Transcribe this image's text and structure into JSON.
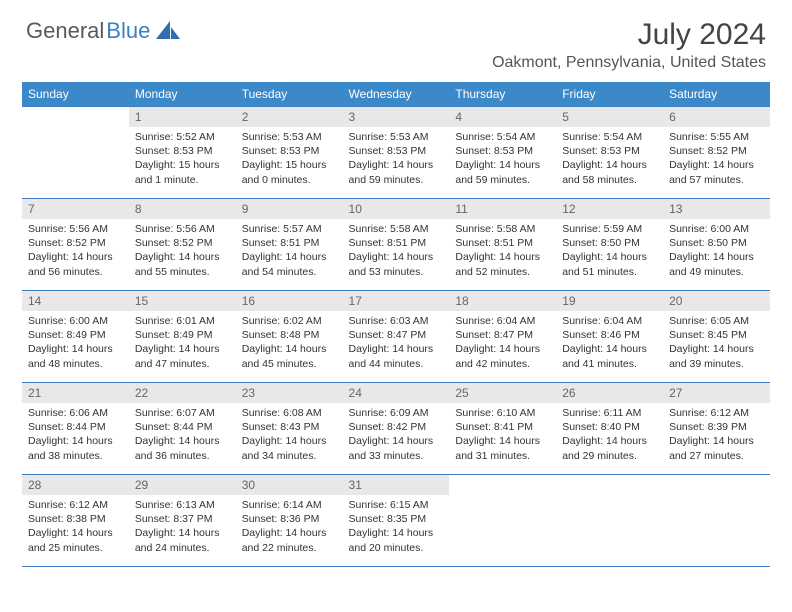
{
  "brand": {
    "part1": "General",
    "part2": "Blue"
  },
  "title": "July 2024",
  "location": "Oakmont, Pennsylvania, United States",
  "colors": {
    "header_bg": "#3b89c9",
    "rule": "#3b7fc4",
    "daynum_bg": "#e8e8e8",
    "text": "#333333",
    "logo_gray": "#555b60"
  },
  "day_headers": [
    "Sunday",
    "Monday",
    "Tuesday",
    "Wednesday",
    "Thursday",
    "Friday",
    "Saturday"
  ],
  "weeks": [
    [
      null,
      {
        "n": "1",
        "sr": "5:52 AM",
        "ss": "8:53 PM",
        "dl": "15 hours and 1 minute."
      },
      {
        "n": "2",
        "sr": "5:53 AM",
        "ss": "8:53 PM",
        "dl": "15 hours and 0 minutes."
      },
      {
        "n": "3",
        "sr": "5:53 AM",
        "ss": "8:53 PM",
        "dl": "14 hours and 59 minutes."
      },
      {
        "n": "4",
        "sr": "5:54 AM",
        "ss": "8:53 PM",
        "dl": "14 hours and 59 minutes."
      },
      {
        "n": "5",
        "sr": "5:54 AM",
        "ss": "8:53 PM",
        "dl": "14 hours and 58 minutes."
      },
      {
        "n": "6",
        "sr": "5:55 AM",
        "ss": "8:52 PM",
        "dl": "14 hours and 57 minutes."
      }
    ],
    [
      {
        "n": "7",
        "sr": "5:56 AM",
        "ss": "8:52 PM",
        "dl": "14 hours and 56 minutes."
      },
      {
        "n": "8",
        "sr": "5:56 AM",
        "ss": "8:52 PM",
        "dl": "14 hours and 55 minutes."
      },
      {
        "n": "9",
        "sr": "5:57 AM",
        "ss": "8:51 PM",
        "dl": "14 hours and 54 minutes."
      },
      {
        "n": "10",
        "sr": "5:58 AM",
        "ss": "8:51 PM",
        "dl": "14 hours and 53 minutes."
      },
      {
        "n": "11",
        "sr": "5:58 AM",
        "ss": "8:51 PM",
        "dl": "14 hours and 52 minutes."
      },
      {
        "n": "12",
        "sr": "5:59 AM",
        "ss": "8:50 PM",
        "dl": "14 hours and 51 minutes."
      },
      {
        "n": "13",
        "sr": "6:00 AM",
        "ss": "8:50 PM",
        "dl": "14 hours and 49 minutes."
      }
    ],
    [
      {
        "n": "14",
        "sr": "6:00 AM",
        "ss": "8:49 PM",
        "dl": "14 hours and 48 minutes."
      },
      {
        "n": "15",
        "sr": "6:01 AM",
        "ss": "8:49 PM",
        "dl": "14 hours and 47 minutes."
      },
      {
        "n": "16",
        "sr": "6:02 AM",
        "ss": "8:48 PM",
        "dl": "14 hours and 45 minutes."
      },
      {
        "n": "17",
        "sr": "6:03 AM",
        "ss": "8:47 PM",
        "dl": "14 hours and 44 minutes."
      },
      {
        "n": "18",
        "sr": "6:04 AM",
        "ss": "8:47 PM",
        "dl": "14 hours and 42 minutes."
      },
      {
        "n": "19",
        "sr": "6:04 AM",
        "ss": "8:46 PM",
        "dl": "14 hours and 41 minutes."
      },
      {
        "n": "20",
        "sr": "6:05 AM",
        "ss": "8:45 PM",
        "dl": "14 hours and 39 minutes."
      }
    ],
    [
      {
        "n": "21",
        "sr": "6:06 AM",
        "ss": "8:44 PM",
        "dl": "14 hours and 38 minutes."
      },
      {
        "n": "22",
        "sr": "6:07 AM",
        "ss": "8:44 PM",
        "dl": "14 hours and 36 minutes."
      },
      {
        "n": "23",
        "sr": "6:08 AM",
        "ss": "8:43 PM",
        "dl": "14 hours and 34 minutes."
      },
      {
        "n": "24",
        "sr": "6:09 AM",
        "ss": "8:42 PM",
        "dl": "14 hours and 33 minutes."
      },
      {
        "n": "25",
        "sr": "6:10 AM",
        "ss": "8:41 PM",
        "dl": "14 hours and 31 minutes."
      },
      {
        "n": "26",
        "sr": "6:11 AM",
        "ss": "8:40 PM",
        "dl": "14 hours and 29 minutes."
      },
      {
        "n": "27",
        "sr": "6:12 AM",
        "ss": "8:39 PM",
        "dl": "14 hours and 27 minutes."
      }
    ],
    [
      {
        "n": "28",
        "sr": "6:12 AM",
        "ss": "8:38 PM",
        "dl": "14 hours and 25 minutes."
      },
      {
        "n": "29",
        "sr": "6:13 AM",
        "ss": "8:37 PM",
        "dl": "14 hours and 24 minutes."
      },
      {
        "n": "30",
        "sr": "6:14 AM",
        "ss": "8:36 PM",
        "dl": "14 hours and 22 minutes."
      },
      {
        "n": "31",
        "sr": "6:15 AM",
        "ss": "8:35 PM",
        "dl": "14 hours and 20 minutes."
      },
      null,
      null,
      null
    ]
  ],
  "labels": {
    "sunrise": "Sunrise:",
    "sunset": "Sunset:",
    "daylight": "Daylight:"
  }
}
